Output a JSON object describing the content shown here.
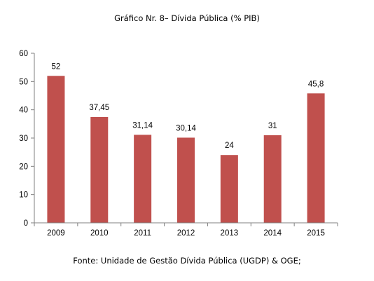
{
  "chart_data": {
    "type": "bar",
    "title": "Gráfico Nr. 8– Dívida Pública (% PIB)",
    "categories": [
      "2009",
      "2010",
      "2011",
      "2012",
      "2013",
      "2014",
      "2015"
    ],
    "values": [
      52,
      37.45,
      31.14,
      30.14,
      24,
      31,
      45.8
    ],
    "data_labels": [
      "52",
      "37,45",
      "31,14",
      "30,14",
      "24",
      "31",
      "45,8"
    ],
    "ylim": [
      0,
      60
    ],
    "yticks": [
      0,
      10,
      20,
      30,
      40,
      50,
      60
    ],
    "xlabel": "",
    "ylabel": "",
    "grid": false,
    "legend": "none",
    "bar_color": "#c0504d",
    "axis_color": "#808080"
  },
  "source_note": "Fonte: Unidade de Gestão Dívida Pública (UGDP) & OGE;"
}
